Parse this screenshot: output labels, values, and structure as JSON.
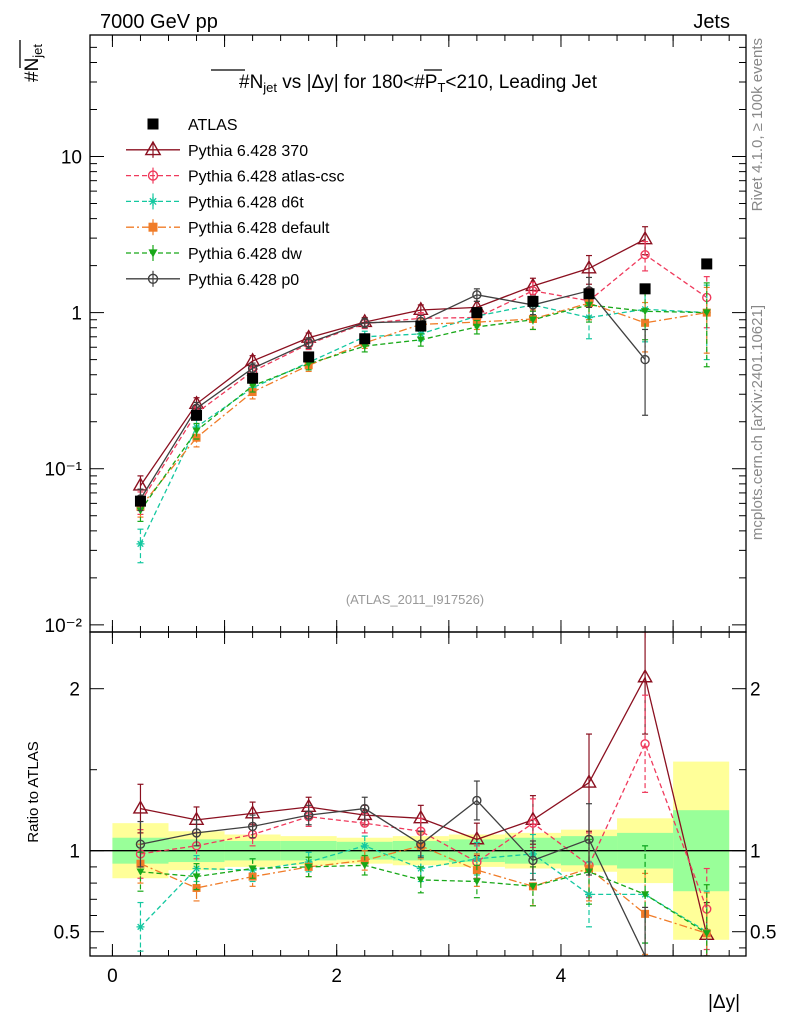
{
  "header": {
    "left": "7000 GeV pp",
    "right": "Jets"
  },
  "side_labels": {
    "rivet": "Rivet 4.1.0, ≥ 100k events",
    "mcplots": "mcplots.cern.ch [arXiv:2401.10621]"
  },
  "colors": {
    "data": "#000000",
    "p370": "#8b1020",
    "atlascsc": "#ef3a5c",
    "d6t": "#14c8a0",
    "default": "#f07c28",
    "dw": "#18a818",
    "p0": "#404040",
    "band_inner": "#99ff99",
    "band_outer": "#ffff99"
  },
  "chart_data": [
    {
      "type": "scatter",
      "name": "main",
      "title_parts": {
        "n": "#N",
        "n_sub": "jet",
        "mid": " vs |Δy| for 180<#",
        "p": "P",
        "p_sub": "T",
        "end": "<210, Leading Jet"
      },
      "ylabel": "#N",
      "ylabel_sub": "jet",
      "yscale": "log",
      "ylim": [
        0.009,
        60
      ],
      "xlim": [
        -0.2,
        5.65
      ],
      "ytick_labels": [
        "10⁻²",
        "10⁻¹",
        "1",
        "10"
      ],
      "watermark": "(ATLAS_2011_I917526)",
      "x": [
        0.25,
        0.75,
        1.25,
        1.75,
        2.25,
        2.75,
        3.25,
        3.75,
        4.25,
        4.75,
        5.3
      ],
      "series": [
        {
          "name": "ATLAS",
          "key": "data",
          "marker": "square",
          "values": [
            0.062,
            0.22,
            0.38,
            0.52,
            0.68,
            0.82,
            1.0,
            1.18,
            1.32,
            1.42,
            2.05
          ]
        },
        {
          "name": "Pythia 6.428 370",
          "key": "p370",
          "marker": "triangle",
          "line": "solid",
          "values": [
            0.078,
            0.26,
            0.49,
            0.69,
            0.87,
            1.04,
            1.08,
            1.48,
            1.92,
            2.95,
            null
          ],
          "err": [
            0.012,
            0.025,
            0.04,
            0.05,
            0.06,
            0.08,
            0.1,
            0.18,
            0.4,
            0.6,
            null
          ]
        },
        {
          "name": "Pythia 6.428 atlas-csc",
          "key": "atlascsc",
          "marker": "circle",
          "line": "dashed",
          "values": [
            0.061,
            0.228,
            0.42,
            0.63,
            0.85,
            0.92,
            0.93,
            1.38,
            1.19,
            2.35,
            1.25
          ],
          "err": [
            0.01,
            0.02,
            0.035,
            0.05,
            0.06,
            0.08,
            0.1,
            0.18,
            0.25,
            0.5,
            0.45
          ]
        },
        {
          "name": "Pythia 6.428 d6t",
          "key": "d6t",
          "marker": "star",
          "line": "dashed",
          "values": [
            0.033,
            0.185,
            0.33,
            0.48,
            0.7,
            0.73,
            0.95,
            1.12,
            0.93,
            1.05,
            1.0
          ],
          "err": [
            0.008,
            0.02,
            0.03,
            0.04,
            0.06,
            0.07,
            0.1,
            0.15,
            0.25,
            0.4,
            0.5
          ]
        },
        {
          "name": "Pythia 6.428 default",
          "key": "default",
          "marker": "square",
          "line": "dashdot",
          "values": [
            0.057,
            0.158,
            0.31,
            0.46,
            0.64,
            0.84,
            0.87,
            0.91,
            1.15,
            0.86,
            1.0
          ],
          "err": [
            0.008,
            0.02,
            0.03,
            0.04,
            0.05,
            0.07,
            0.09,
            0.13,
            0.25,
            0.3,
            0.45
          ]
        },
        {
          "name": "Pythia 6.428 dw",
          "key": "dw",
          "marker": "triangle-down",
          "line": "dashed",
          "values": [
            0.054,
            0.175,
            0.34,
            0.47,
            0.61,
            0.67,
            0.81,
            0.9,
            1.12,
            1.02,
            1.0
          ],
          "err": [
            0.008,
            0.02,
            0.03,
            0.04,
            0.05,
            0.06,
            0.08,
            0.12,
            0.25,
            0.35,
            0.55
          ]
        },
        {
          "name": "Pythia 6.428 p0",
          "key": "p0",
          "marker": "circle",
          "line": "solid",
          "values": [
            0.064,
            0.244,
            0.44,
            0.64,
            0.86,
            0.88,
            1.3,
            1.12,
            1.38,
            0.5,
            null
          ],
          "err": [
            0.01,
            0.022,
            0.035,
            0.05,
            0.06,
            0.08,
            0.12,
            0.15,
            0.3,
            0.28,
            null
          ]
        }
      ]
    },
    {
      "type": "scatter",
      "name": "ratio",
      "ylabel": "Ratio to ATLAS",
      "xlabel": "|Δy|",
      "ylim": [
        0.35,
        2.35
      ],
      "xlim": [
        -0.2,
        5.65
      ],
      "yticks": [
        0.5,
        1,
        2
      ],
      "ytick_labels": [
        "0.5",
        "1",
        "2"
      ],
      "xticks": [
        0,
        2,
        4
      ],
      "xtick_labels": [
        "0",
        "2",
        "4"
      ],
      "x": [
        0.25,
        0.75,
        1.25,
        1.75,
        2.25,
        2.75,
        3.25,
        3.75,
        4.25,
        4.75,
        5.3
      ],
      "bin_edges": [
        0.0,
        0.5,
        1.0,
        1.5,
        2.0,
        2.5,
        3.0,
        3.5,
        4.0,
        4.5,
        5.0,
        5.5
      ],
      "band_inner": [
        0.08,
        0.07,
        0.06,
        0.06,
        0.055,
        0.06,
        0.07,
        0.08,
        0.09,
        0.11,
        0.25
      ],
      "band_outer": [
        0.17,
        0.12,
        0.1,
        0.09,
        0.08,
        0.09,
        0.1,
        0.11,
        0.13,
        0.2,
        0.55
      ],
      "series": [
        {
          "key": "p370",
          "marker": "triangle",
          "line": "solid",
          "values": [
            1.26,
            1.19,
            1.23,
            1.27,
            1.22,
            1.2,
            1.07,
            1.19,
            1.42,
            2.07,
            0.48
          ],
          "err": [
            0.15,
            0.08,
            0.07,
            0.06,
            0.06,
            0.08,
            0.1,
            0.15,
            0.3,
            0.35,
            0.2
          ]
        },
        {
          "key": "atlascsc",
          "marker": "circle",
          "line": "dashed",
          "values": [
            0.98,
            1.03,
            1.1,
            1.21,
            1.17,
            1.12,
            0.93,
            1.17,
            0.91,
            1.66,
            0.64
          ],
          "err": [
            0.15,
            0.08,
            0.07,
            0.06,
            0.06,
            0.08,
            0.1,
            0.15,
            0.2,
            0.3,
            0.25
          ]
        },
        {
          "key": "d6t",
          "marker": "star",
          "line": "dashed",
          "values": [
            0.53,
            0.89,
            0.88,
            0.93,
            1.03,
            0.89,
            0.95,
            0.98,
            0.73,
            0.73,
            0.5
          ],
          "err": [
            0.15,
            0.08,
            0.07,
            0.06,
            0.06,
            0.08,
            0.1,
            0.12,
            0.2,
            0.3,
            0.25
          ]
        },
        {
          "key": "default",
          "marker": "square",
          "line": "dashdot",
          "values": [
            0.92,
            0.77,
            0.84,
            0.9,
            0.94,
            1.03,
            0.88,
            0.78,
            0.89,
            0.61,
            0.49
          ],
          "err": [
            0.12,
            0.08,
            0.06,
            0.06,
            0.06,
            0.08,
            0.1,
            0.12,
            0.2,
            0.25,
            0.25
          ]
        },
        {
          "key": "dw",
          "marker": "triangle-down",
          "line": "dashed",
          "values": [
            0.87,
            0.84,
            0.89,
            0.9,
            0.91,
            0.82,
            0.81,
            0.78,
            0.87,
            0.73,
            0.49
          ],
          "err": [
            0.12,
            0.08,
            0.06,
            0.06,
            0.06,
            0.08,
            0.1,
            0.12,
            0.2,
            0.3,
            0.3
          ]
        },
        {
          "key": "p0",
          "marker": "circle",
          "line": "solid",
          "values": [
            1.04,
            1.11,
            1.15,
            1.22,
            1.26,
            1.04,
            1.31,
            0.94,
            1.07,
            0.35,
            0.35
          ],
          "err": [
            0.14,
            0.08,
            0.07,
            0.06,
            0.07,
            0.08,
            0.12,
            0.12,
            0.22,
            0.3,
            0
          ]
        }
      ]
    }
  ]
}
